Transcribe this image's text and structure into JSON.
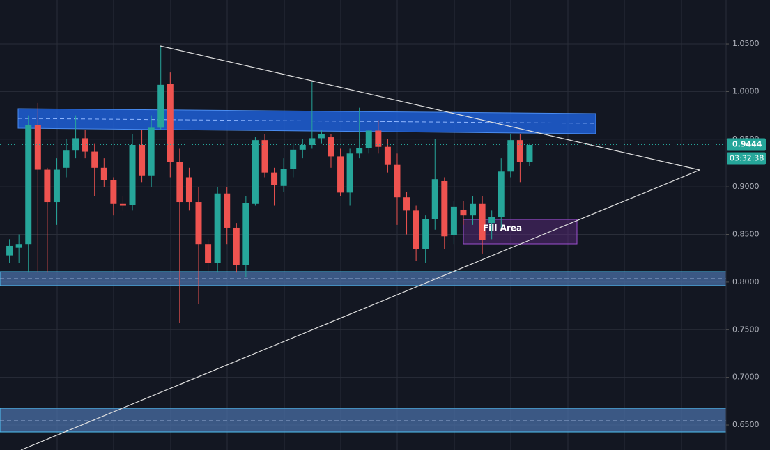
{
  "chart_data": {
    "type": "candlestick",
    "ylim": [
      0.6237,
      1.0961
    ],
    "yticks": [
      {
        "value": 1.05,
        "label": "1.0500"
      },
      {
        "value": 1.0,
        "label": "1.0000"
      },
      {
        "value": 0.95,
        "label": "0.9500"
      },
      {
        "value": 0.9,
        "label": "0.9000"
      },
      {
        "value": 0.85,
        "label": "0.8500"
      },
      {
        "value": 0.8,
        "label": "0.8000"
      },
      {
        "value": 0.75,
        "label": "0.7500"
      },
      {
        "value": 0.7,
        "label": "0.7000"
      },
      {
        "value": 0.65,
        "label": "0.6500"
      }
    ],
    "grid": true,
    "up_color": "#26a69a",
    "down_color": "#ef5350",
    "open": [
      0.828,
      0.836,
      0.84,
      0.965,
      0.918,
      0.884,
      0.92,
      0.938,
      0.951,
      0.937,
      0.92,
      0.907,
      0.882,
      0.881,
      0.944,
      0.912,
      0.962,
      1.008,
      0.926,
      0.91,
      0.884,
      0.84,
      0.82,
      0.893,
      0.857,
      0.818,
      0.882,
      0.949,
      0.915,
      0.901,
      0.919,
      0.939,
      0.944,
      0.951,
      0.952,
      0.932,
      0.894,
      0.935,
      0.941,
      0.959,
      0.942,
      0.923,
      0.889,
      0.875,
      0.835,
      0.866,
      0.906,
      0.849,
      0.876,
      0.87,
      0.882,
      0.862,
      0.868,
      0.916,
      0.949,
      0.926
    ],
    "high": [
      0.845,
      0.85,
      0.975,
      0.988,
      0.92,
      0.93,
      0.95,
      0.975,
      0.96,
      0.945,
      0.93,
      0.91,
      0.89,
      0.955,
      0.96,
      0.975,
      1.048,
      1.02,
      0.94,
      0.92,
      0.9,
      0.845,
      0.9,
      0.9,
      0.862,
      0.89,
      0.952,
      0.955,
      0.92,
      0.93,
      0.945,
      0.95,
      1.01,
      0.96,
      0.955,
      0.94,
      0.94,
      0.983,
      0.96,
      0.97,
      0.95,
      0.935,
      0.895,
      0.88,
      0.87,
      0.95,
      0.91,
      0.885,
      0.885,
      0.89,
      0.89,
      0.875,
      0.93,
      0.955,
      0.955,
      0.945
    ],
    "low": [
      0.82,
      0.82,
      0.81,
      0.81,
      0.81,
      0.86,
      0.91,
      0.93,
      0.93,
      0.89,
      0.9,
      0.87,
      0.875,
      0.875,
      0.905,
      0.9,
      0.96,
      0.91,
      0.757,
      0.875,
      0.777,
      0.81,
      0.81,
      0.84,
      0.81,
      0.805,
      0.88,
      0.91,
      0.88,
      0.895,
      0.91,
      0.93,
      0.94,
      0.945,
      0.92,
      0.89,
      0.88,
      0.93,
      0.935,
      0.935,
      0.915,
      0.86,
      0.85,
      0.822,
      0.82,
      0.855,
      0.835,
      0.84,
      0.86,
      0.86,
      0.83,
      0.845,
      0.855,
      0.91,
      0.905,
      0.922
    ],
    "close": [
      0.838,
      0.84,
      0.965,
      0.918,
      0.884,
      0.918,
      0.938,
      0.951,
      0.937,
      0.92,
      0.907,
      0.882,
      0.88,
      0.944,
      0.912,
      0.962,
      1.007,
      0.926,
      0.884,
      0.884,
      0.84,
      0.82,
      0.893,
      0.857,
      0.818,
      0.883,
      0.949,
      0.915,
      0.902,
      0.919,
      0.939,
      0.944,
      0.951,
      0.955,
      0.932,
      0.894,
      0.935,
      0.941,
      0.959,
      0.942,
      0.923,
      0.889,
      0.875,
      0.835,
      0.866,
      0.908,
      0.848,
      0.879,
      0.87,
      0.882,
      0.844,
      0.868,
      0.916,
      0.949,
      0.926,
      0.944
    ],
    "last_price": 0.9444,
    "countdown": "03:32:38",
    "annotation": "Fill Area"
  }
}
